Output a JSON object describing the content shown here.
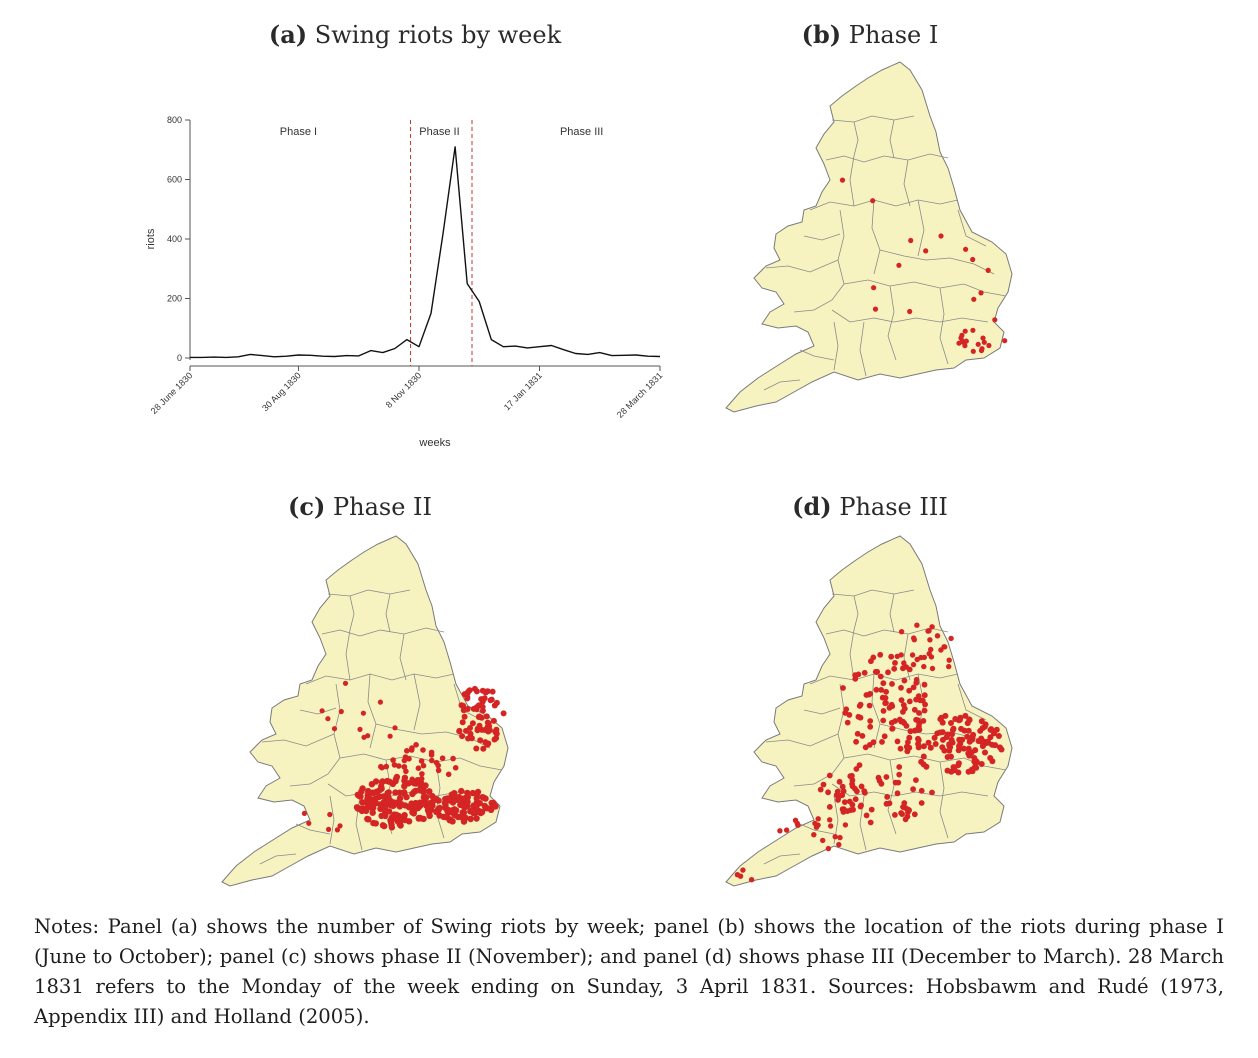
{
  "panels": {
    "a": {
      "label": "(a)",
      "title": "Swing riots by week"
    },
    "b": {
      "label": "(b)",
      "title": "Phase I"
    },
    "c": {
      "label": "(c)",
      "title": "Phase II"
    },
    "d": {
      "label": "(d)",
      "title": "Phase III"
    }
  },
  "chart_data": {
    "type": "line",
    "title": "Swing riots by week",
    "xlabel": "weeks",
    "ylabel": "riots",
    "ylim": [
      0,
      800
    ],
    "yticks": [
      0,
      200,
      400,
      600,
      800
    ],
    "xtick_labels": [
      "28 June 1830",
      "30 Aug 1830",
      "8 Nov 1830",
      "17 Jan 1831",
      "28 March 1831"
    ],
    "xtick_weeks": [
      0,
      9,
      19,
      29,
      39
    ],
    "phase_lines_week": [
      18.3,
      23.4
    ],
    "phase_labels": [
      {
        "text": "Phase I",
        "week": 9,
        "y": 750
      },
      {
        "text": "Phase II",
        "week": 20.7,
        "y": 750
      },
      {
        "text": "Phase III",
        "week": 32.5,
        "y": 750
      }
    ],
    "series": [
      {
        "color": "#111111",
        "values": [
          2,
          2,
          3,
          2,
          4,
          12,
          8,
          4,
          6,
          10,
          9,
          6,
          5,
          8,
          7,
          25,
          18,
          32,
          62,
          38,
          150,
          420,
          710,
          250,
          190,
          62,
          38,
          40,
          34,
          38,
          42,
          28,
          15,
          12,
          18,
          8,
          9,
          10,
          6,
          5
        ]
      }
    ],
    "line_style": "solid",
    "grid": false
  },
  "maps": {
    "land_color": "#f7f3c0",
    "border_color": "#6e6e6e",
    "dot_color": "#d42424"
  },
  "notes": "Notes: Panel (a) shows the number of Swing riots by week; panel (b) shows the location of the riots during phase I (June to October); panel (c) shows phase II (November); and panel (d) shows phase III (December to March). 28 March 1831 refers to the Monday of the week ending on Sunday, 3 April 1831. Sources: Hobsbawm and Rudé (1973, Appendix III) and Holland (2005)."
}
